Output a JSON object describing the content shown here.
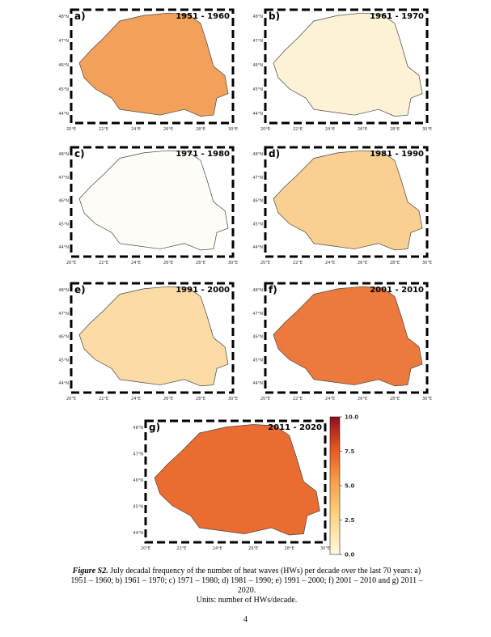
{
  "panels": [
    {
      "label": "a)",
      "period": "1951 - 1960",
      "fill": "#f3a05a"
    },
    {
      "label": "b)",
      "period": "1961 - 1970",
      "fill": "#fdf1d6"
    },
    {
      "label": "c)",
      "period": "1971 - 1980",
      "fill": "#fefcf7"
    },
    {
      "label": "d)",
      "period": "1981 - 1990",
      "fill": "#f9cf92"
    },
    {
      "label": "e)",
      "period": "1991 - 2000",
      "fill": "#fbdba6"
    },
    {
      "label": "f)",
      "period": "2001 - 2010",
      "fill": "#ec7a3c"
    },
    {
      "label": "g)",
      "period": "2011 - 2020",
      "fill": "#eb6c30"
    }
  ],
  "lat_ticks": [
    "44°N",
    "45°N",
    "46°N",
    "47°N",
    "48°N"
  ],
  "lon_ticks": [
    "20°E",
    "22°E",
    "24°E",
    "26°E",
    "28°E",
    "30°E"
  ],
  "colorbar": {
    "lim": [
      0,
      10
    ],
    "ticks": [
      {
        "value": 0,
        "label": "0.0"
      },
      {
        "value": 2.5,
        "label": "2.5"
      },
      {
        "value": 5,
        "label": "5.0"
      },
      {
        "value": 7.5,
        "label": "7.5"
      },
      {
        "value": 10,
        "label": "10.0"
      }
    ]
  },
  "caption": {
    "figure": "Figure S2.",
    "text": "July decadal frequency of the number of heat waves (HWs) per decade over the last 70 years: a) 1951 – 1960; b) 1961 – 1970; c)  1971 – 1980; d) 1981 – 1990; e) 1991 – 2000; f) 2001 – 2010 and g) 2011 – 2020.",
    "units": "Units: number of HWs/decade."
  },
  "page_number": "4"
}
